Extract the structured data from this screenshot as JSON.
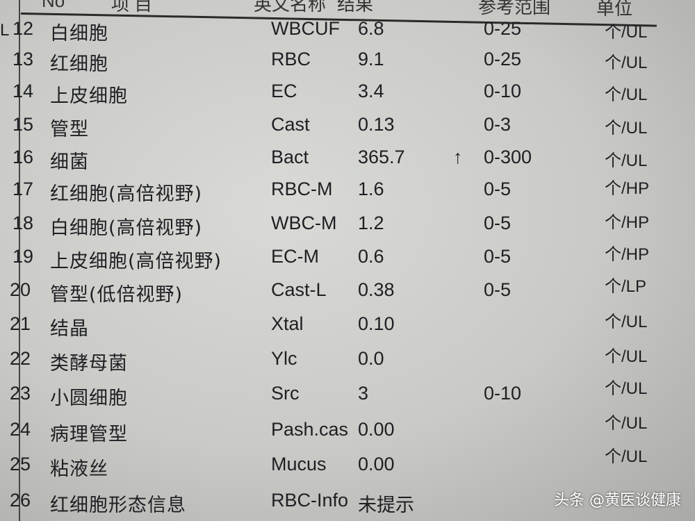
{
  "header": {
    "no": "No",
    "item": "项  目",
    "english": "英文名称",
    "result": "结果",
    "range": "参考范围",
    "unit": "单位"
  },
  "edge_mark": "L",
  "rows": [
    {
      "no": "12",
      "name": "白细胞",
      "code": "WBCUF",
      "result": "6.8",
      "flag": "",
      "range": "0-25",
      "unit": "个/UL"
    },
    {
      "no": "13",
      "name": "红细胞",
      "code": "RBC",
      "result": "9.1",
      "flag": "",
      "range": "0-25",
      "unit": "个/UL"
    },
    {
      "no": "14",
      "name": "上皮细胞",
      "code": "EC",
      "result": "3.4",
      "flag": "",
      "range": "0-10",
      "unit": "个/UL"
    },
    {
      "no": "15",
      "name": "管型",
      "code": "Cast",
      "result": "0.13",
      "flag": "",
      "range": "0-3",
      "unit": "个/UL"
    },
    {
      "no": "16",
      "name": "细菌",
      "code": "Bact",
      "result": "365.7",
      "flag": "↑",
      "range": "0-300",
      "unit": "个/UL"
    },
    {
      "no": "17",
      "name": "红细胞(高倍视野)",
      "code": "RBC-M",
      "result": "1.6",
      "flag": "",
      "range": "0-5",
      "unit": "个/HP"
    },
    {
      "no": "18",
      "name": "白细胞(高倍视野)",
      "code": "WBC-M",
      "result": "1.2",
      "flag": "",
      "range": "0-5",
      "unit": "个/HP"
    },
    {
      "no": "19",
      "name": "上皮细胞(高倍视野)",
      "code": "EC-M",
      "result": "0.6",
      "flag": "",
      "range": "0-5",
      "unit": "个/HP"
    },
    {
      "no": "20",
      "name": "管型(低倍视野)",
      "code": "Cast-L",
      "result": "0.38",
      "flag": "",
      "range": "0-5",
      "unit": "个/LP"
    },
    {
      "no": "21",
      "name": "结晶",
      "code": "Xtal",
      "result": "0.10",
      "flag": "",
      "range": "",
      "unit": "个/UL"
    },
    {
      "no": "22",
      "name": "类酵母菌",
      "code": "Ylc",
      "result": "0.0",
      "flag": "",
      "range": "",
      "unit": "个/UL"
    },
    {
      "no": "23",
      "name": "小圆细胞",
      "code": "Src",
      "result": "3",
      "flag": "",
      "range": "0-10",
      "unit": "个/UL"
    },
    {
      "no": "24",
      "name": "病理管型",
      "code": "Pash.cas",
      "result": "0.00",
      "flag": "",
      "range": "",
      "unit": "个/UL"
    },
    {
      "no": "25",
      "name": "粘液丝",
      "code": "Mucus",
      "result": "0.00",
      "flag": "",
      "range": "",
      "unit": "个/UL"
    },
    {
      "no": "26",
      "name": "红细胞形态信息",
      "code": "RBC-Info",
      "result": "未提示",
      "flag": "",
      "range": "",
      "unit": ""
    }
  ],
  "watermark": "头条 @黄医谈健康"
}
